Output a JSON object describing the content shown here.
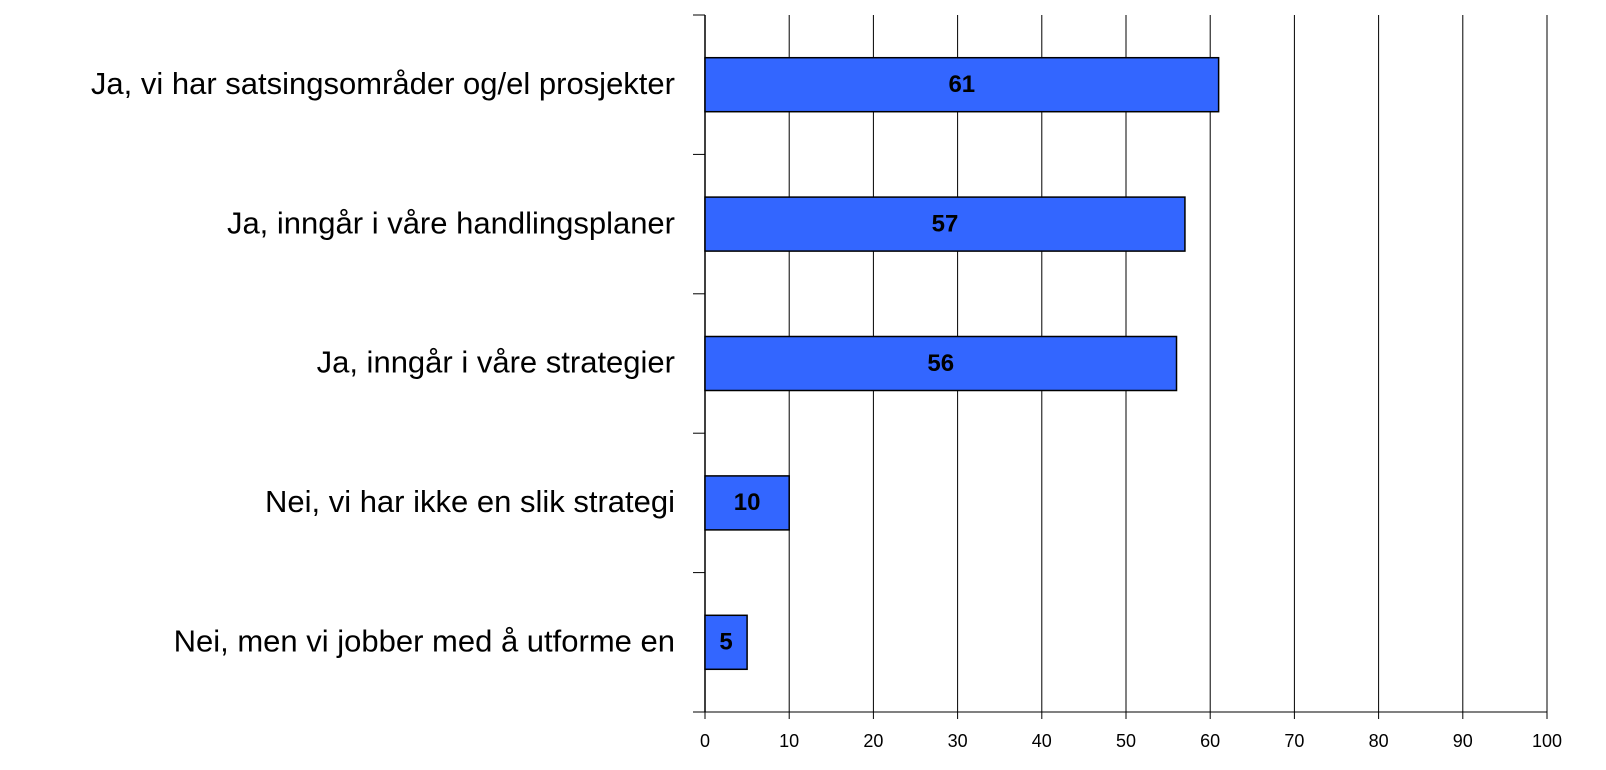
{
  "chart_data": {
    "type": "bar",
    "orientation": "horizontal",
    "categories": [
      "Ja, vi har satsingsområder og/el prosjekter",
      "Ja, inngår i våre handlingsplaner",
      "Ja, inngår i våre strategier",
      "Nei, vi har ikke en slik strategi",
      "Nei, men vi jobber med å utforme en"
    ],
    "values": [
      61,
      57,
      56,
      10,
      5
    ],
    "color": "#3366ff",
    "xlim": [
      0,
      100
    ],
    "xticks": [
      0,
      10,
      20,
      30,
      40,
      50,
      60,
      70,
      80,
      90,
      100
    ],
    "grid": true
  }
}
